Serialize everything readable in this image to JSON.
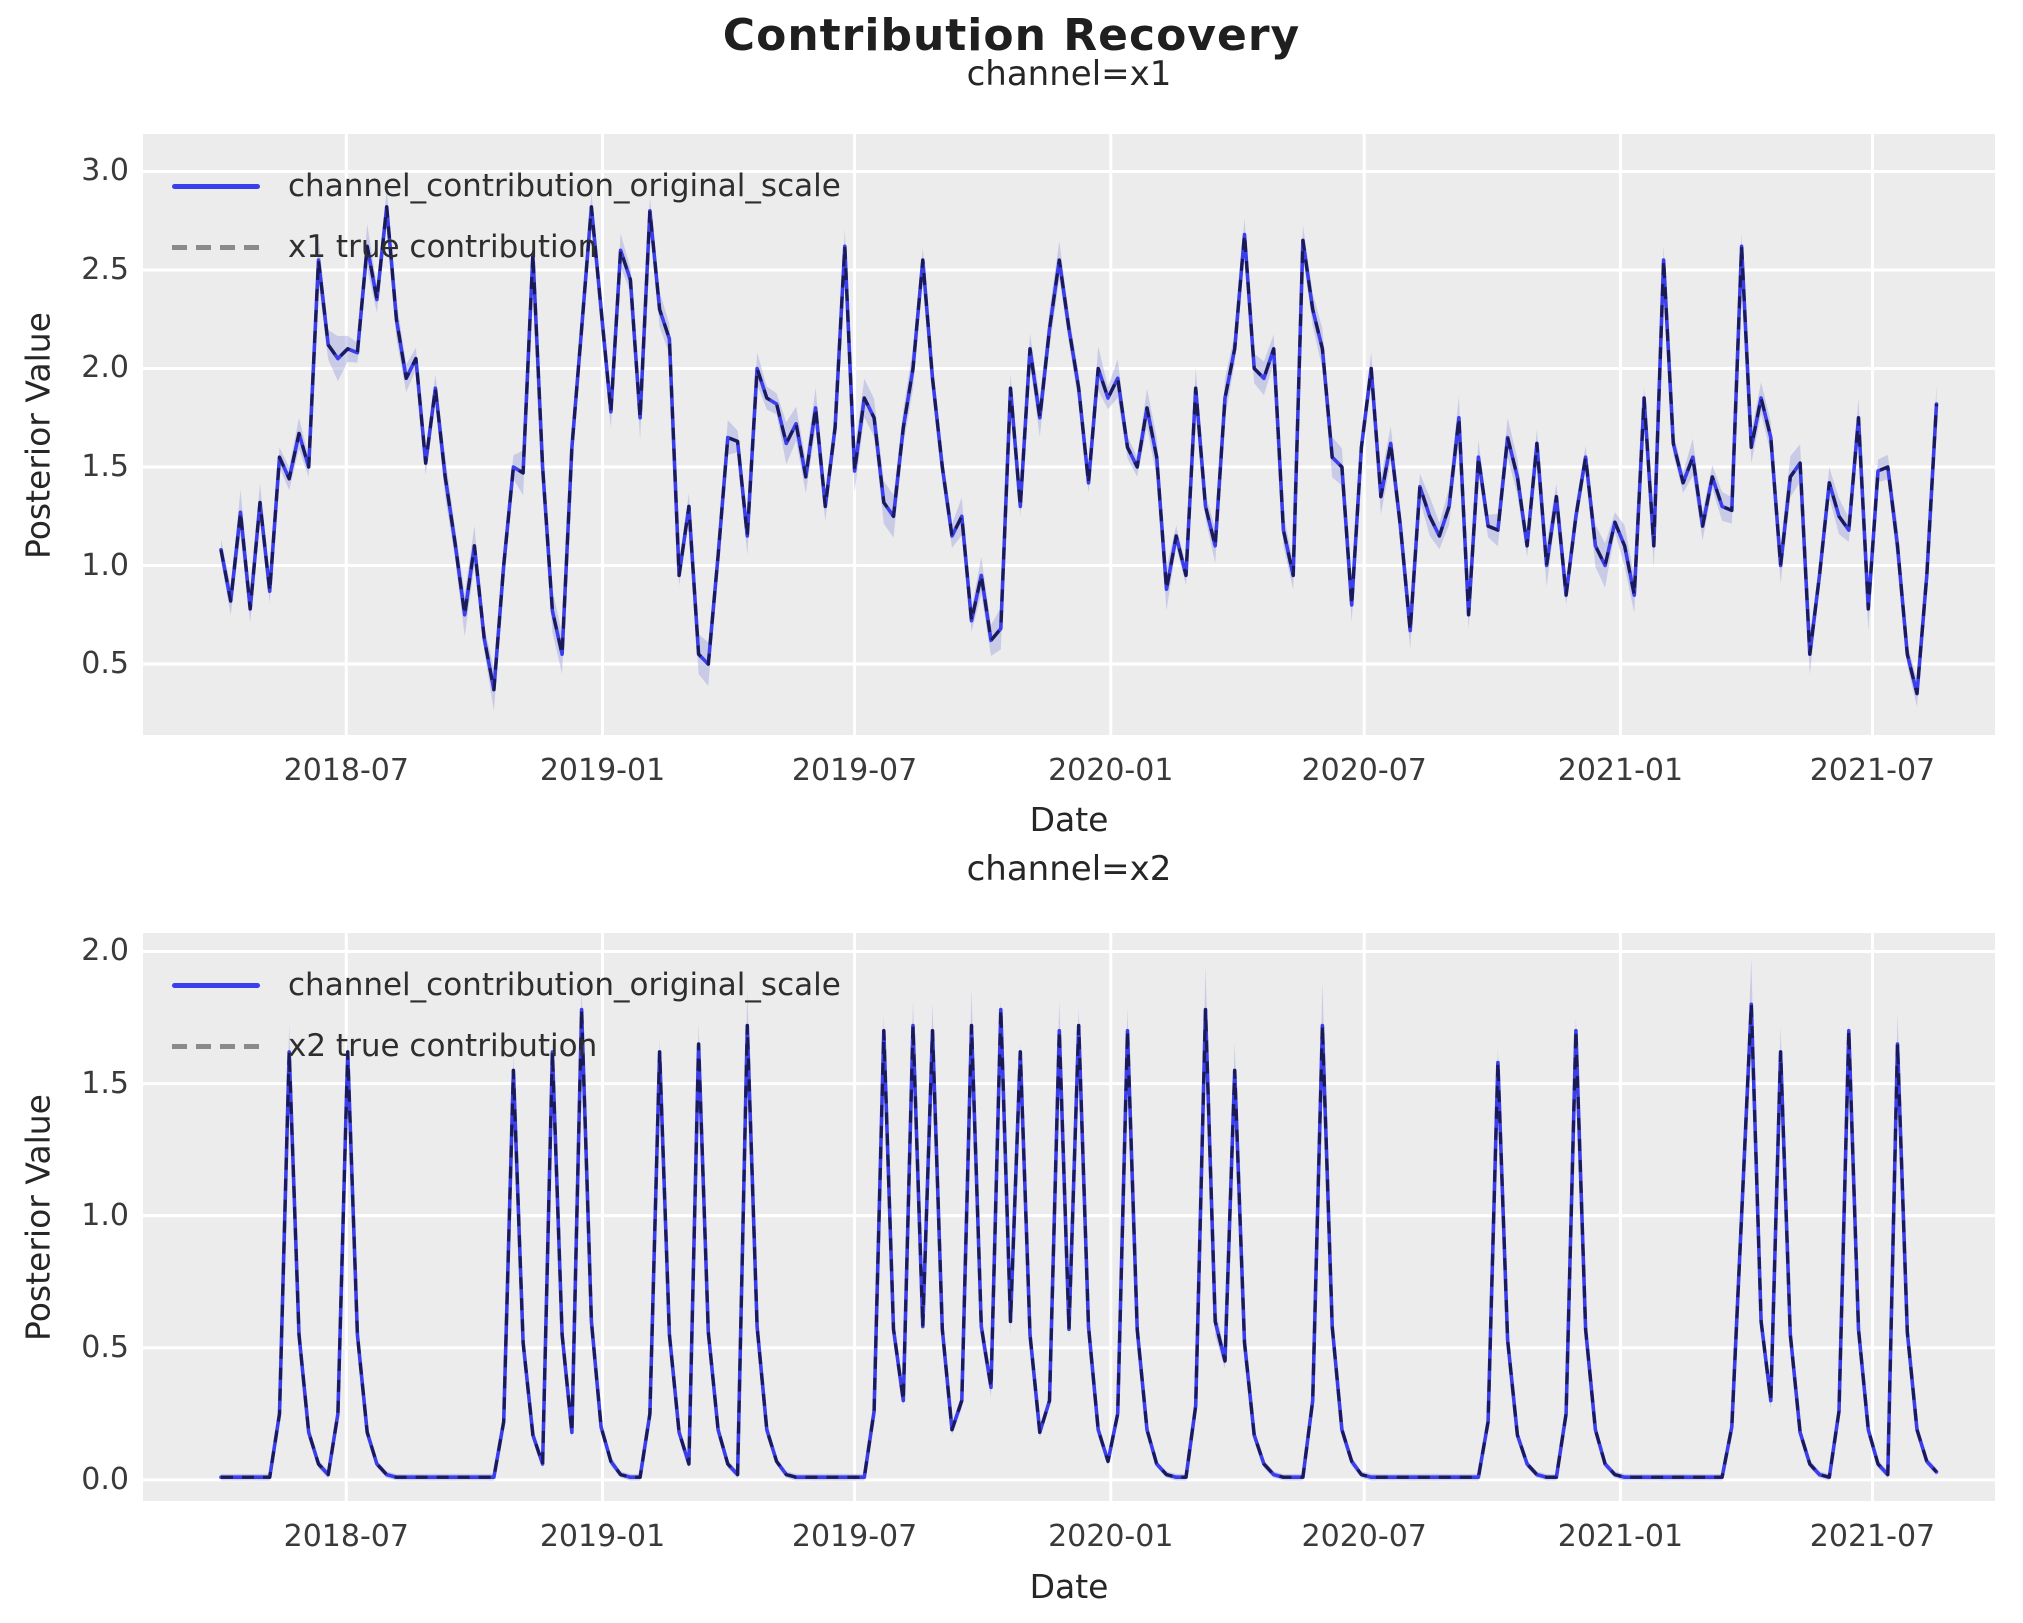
{
  "figure": {
    "title": "Contribution Recovery"
  },
  "colors": {
    "figure_bg": "#ffffff",
    "plot_bg": "#ececec",
    "grid": "#ffffff",
    "posterior_line": "#3b3eec",
    "true_line_dashes": "#15153c",
    "hdi_band": "#9fa3e0",
    "legend_dash_sample": "#8a8a8a",
    "text": "#262626"
  },
  "dates": {
    "note": "weekly x values shared by both subplots",
    "start": "2018-04-02",
    "step_days": 7,
    "n": 177
  },
  "chart_data": [
    {
      "type": "line",
      "title": "channel=x1",
      "xlabel": "Date",
      "ylabel": "Posterior Value",
      "xlim": [
        "2018-02-05",
        "2021-09-27"
      ],
      "ylim": [
        0.14,
        3.19
      ],
      "yticks": [
        "0.5",
        "1.0",
        "1.5",
        "2.0",
        "2.5",
        "3.0"
      ],
      "xticks": [
        {
          "label": "2018-07",
          "date": "2018-07-01"
        },
        {
          "label": "2019-01",
          "date": "2019-01-01"
        },
        {
          "label": "2019-07",
          "date": "2019-07-01"
        },
        {
          "label": "2020-01",
          "date": "2020-01-01"
        },
        {
          "label": "2020-07",
          "date": "2020-07-01"
        },
        {
          "label": "2021-01",
          "date": "2021-01-01"
        },
        {
          "label": "2021-07",
          "date": "2021-07-01"
        }
      ],
      "grid": true,
      "legend_position": "upper-left",
      "legend": [
        "channel_contribution_original_scale",
        "x1 true contribution"
      ],
      "hdi_band": {
        "mode": "additive",
        "halfwidth_base": 0.05,
        "halfwidth_noise": 0.065
      },
      "series": [
        {
          "name": "channel_contribution_original_scale",
          "style": "solid-blue-with-hdi-band",
          "values": [
            1.08,
            0.82,
            1.27,
            0.78,
            1.32,
            0.87,
            1.55,
            1.44,
            1.67,
            1.5,
            2.55,
            2.12,
            2.05,
            2.1,
            2.08,
            2.62,
            2.35,
            2.82,
            2.25,
            1.95,
            2.05,
            1.52,
            1.9,
            1.45,
            1.12,
            0.75,
            1.1,
            0.63,
            0.37,
            1.0,
            1.5,
            1.47,
            2.58,
            1.5,
            0.77,
            0.55,
            1.6,
            2.2,
            2.82,
            2.3,
            1.78,
            2.6,
            2.45,
            1.75,
            2.8,
            2.3,
            2.15,
            0.95,
            1.3,
            0.55,
            0.5,
            1.05,
            1.65,
            1.63,
            1.15,
            2.0,
            1.85,
            1.82,
            1.62,
            1.72,
            1.45,
            1.8,
            1.3,
            1.7,
            2.62,
            1.48,
            1.85,
            1.75,
            1.32,
            1.25,
            1.7,
            2.0,
            2.55,
            1.95,
            1.5,
            1.15,
            1.25,
            0.72,
            0.95,
            0.62,
            0.68,
            1.9,
            1.3,
            2.1,
            1.75,
            2.2,
            2.55,
            2.2,
            1.9,
            1.42,
            2.0,
            1.85,
            1.95,
            1.6,
            1.5,
            1.8,
            1.55,
            0.88,
            1.15,
            0.95,
            1.9,
            1.3,
            1.1,
            1.85,
            2.1,
            2.68,
            2.0,
            1.95,
            2.1,
            1.18,
            0.95,
            2.65,
            2.3,
            2.1,
            1.55,
            1.5,
            0.8,
            1.6,
            2.0,
            1.35,
            1.62,
            1.2,
            0.67,
            1.4,
            1.25,
            1.15,
            1.3,
            1.75,
            0.75,
            1.55,
            1.2,
            1.18,
            1.65,
            1.45,
            1.1,
            1.62,
            1.0,
            1.35,
            0.85,
            1.25,
            1.55,
            1.1,
            1.0,
            1.22,
            1.1,
            0.85,
            1.85,
            1.1,
            2.55,
            1.62,
            1.42,
            1.55,
            1.2,
            1.45,
            1.3,
            1.28,
            2.62,
            1.6,
            1.85,
            1.65,
            1.0,
            1.45,
            1.52,
            0.55,
            0.95,
            1.42,
            1.25,
            1.18,
            1.75,
            0.78,
            1.48,
            1.5,
            1.1,
            0.55,
            0.35,
            0.95,
            1.82
          ]
        },
        {
          "name": "x1 true contribution",
          "style": "dashed-dark",
          "values": "same_as_posterior"
        }
      ]
    },
    {
      "type": "line",
      "title": "channel=x2",
      "xlabel": "Date",
      "ylabel": "Posterior Value",
      "xlim": [
        "2018-02-05",
        "2021-09-27"
      ],
      "ylim": [
        -0.08,
        2.07
      ],
      "yticks": [
        "0.0",
        "0.5",
        "1.0",
        "1.5",
        "2.0"
      ],
      "xticks": [
        {
          "label": "2018-07",
          "date": "2018-07-01"
        },
        {
          "label": "2019-01",
          "date": "2019-01-01"
        },
        {
          "label": "2019-07",
          "date": "2019-07-01"
        },
        {
          "label": "2020-01",
          "date": "2020-01-01"
        },
        {
          "label": "2020-07",
          "date": "2020-07-01"
        },
        {
          "label": "2021-01",
          "date": "2021-01-01"
        },
        {
          "label": "2021-07",
          "date": "2021-07-01"
        }
      ],
      "grid": true,
      "legend_position": "upper-left",
      "legend": [
        "channel_contribution_original_scale",
        "x2 true contribution"
      ],
      "hdi_band": {
        "mode": "proportional",
        "halfwidth_base": 0.012,
        "scale_min": 0.01,
        "scale_max": 0.09
      },
      "series": [
        {
          "name": "channel_contribution_original_scale",
          "style": "solid-blue-with-hdi-band",
          "values": [
            0.01,
            0.01,
            0.01,
            0.01,
            0.01,
            0.01,
            0.25,
            1.62,
            0.55,
            0.18,
            0.06,
            0.02,
            0.25,
            1.62,
            0.55,
            0.18,
            0.06,
            0.02,
            0.01,
            0.01,
            0.01,
            0.01,
            0.01,
            0.01,
            0.01,
            0.01,
            0.01,
            0.01,
            0.01,
            0.22,
            1.55,
            0.52,
            0.17,
            0.06,
            1.62,
            0.55,
            0.18,
            1.78,
            0.6,
            0.2,
            0.07,
            0.02,
            0.01,
            0.01,
            0.25,
            1.62,
            0.55,
            0.18,
            0.06,
            1.65,
            0.56,
            0.19,
            0.06,
            0.02,
            1.72,
            0.58,
            0.19,
            0.07,
            0.02,
            0.01,
            0.01,
            0.01,
            0.01,
            0.01,
            0.01,
            0.01,
            0.01,
            0.26,
            1.7,
            0.57,
            0.3,
            1.72,
            0.58,
            1.7,
            0.57,
            0.19,
            0.3,
            1.72,
            0.58,
            0.35,
            1.78,
            0.6,
            1.62,
            0.55,
            0.18,
            0.3,
            1.7,
            0.57,
            1.72,
            0.58,
            0.19,
            0.07,
            0.25,
            1.7,
            0.57,
            0.19,
            0.06,
            0.02,
            0.01,
            0.01,
            0.28,
            1.78,
            0.6,
            0.45,
            1.55,
            0.52,
            0.17,
            0.06,
            0.02,
            0.01,
            0.01,
            0.01,
            0.3,
            1.72,
            0.58,
            0.19,
            0.07,
            0.02,
            0.01,
            0.01,
            0.01,
            0.01,
            0.01,
            0.01,
            0.01,
            0.01,
            0.01,
            0.01,
            0.01,
            0.01,
            0.22,
            1.58,
            0.53,
            0.17,
            0.06,
            0.02,
            0.01,
            0.01,
            0.25,
            1.7,
            0.57,
            0.19,
            0.06,
            0.02,
            0.01,
            0.01,
            0.01,
            0.01,
            0.01,
            0.01,
            0.01,
            0.01,
            0.01,
            0.01,
            0.01,
            0.2,
            1.0,
            1.8,
            0.6,
            0.3,
            1.62,
            0.55,
            0.18,
            0.06,
            0.02,
            0.01,
            0.26,
            1.7,
            0.57,
            0.19,
            0.06,
            0.02,
            1.65,
            0.56,
            0.19,
            0.07,
            0.03
          ]
        },
        {
          "name": "x2 true contribution",
          "style": "dashed-dark",
          "values": "same_as_posterior"
        }
      ]
    }
  ]
}
